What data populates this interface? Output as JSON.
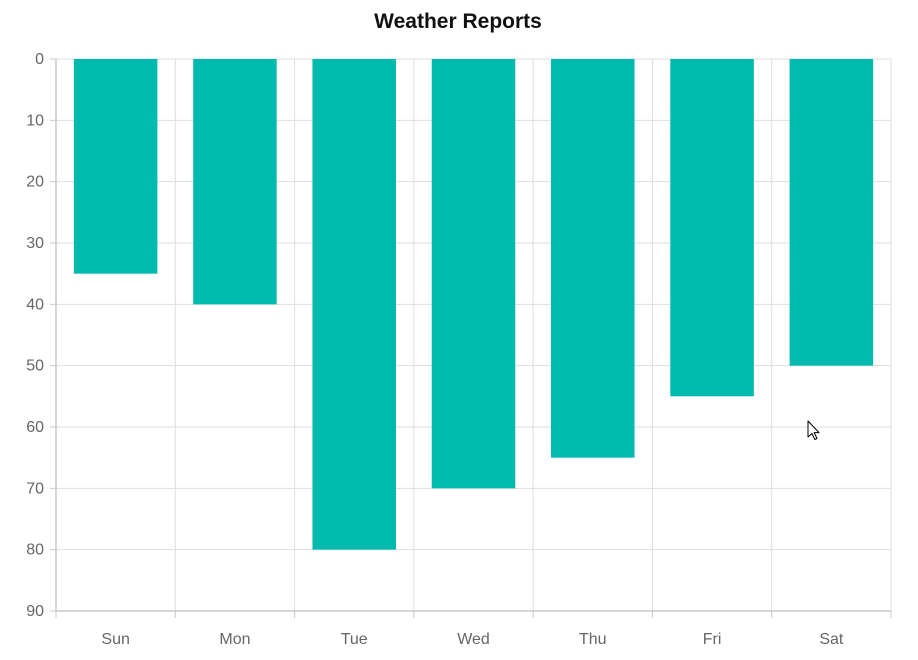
{
  "chart_data": {
    "type": "bar",
    "title": "Weather Reports",
    "xlabel": "",
    "ylabel": "",
    "categories": [
      "Sun",
      "Mon",
      "Tue",
      "Wed",
      "Thu",
      "Fri",
      "Sat"
    ],
    "values": [
      35,
      40,
      80,
      70,
      65,
      55,
      50
    ],
    "ylim": [
      0,
      90
    ],
    "y_inverted": true,
    "y_ticks": [
      0,
      10,
      20,
      30,
      40,
      50,
      60,
      70,
      80,
      90
    ],
    "grid": true,
    "legend": "none",
    "bar_color": "#00BBAD"
  },
  "cursor": {
    "icon": "mouse-pointer-icon"
  }
}
